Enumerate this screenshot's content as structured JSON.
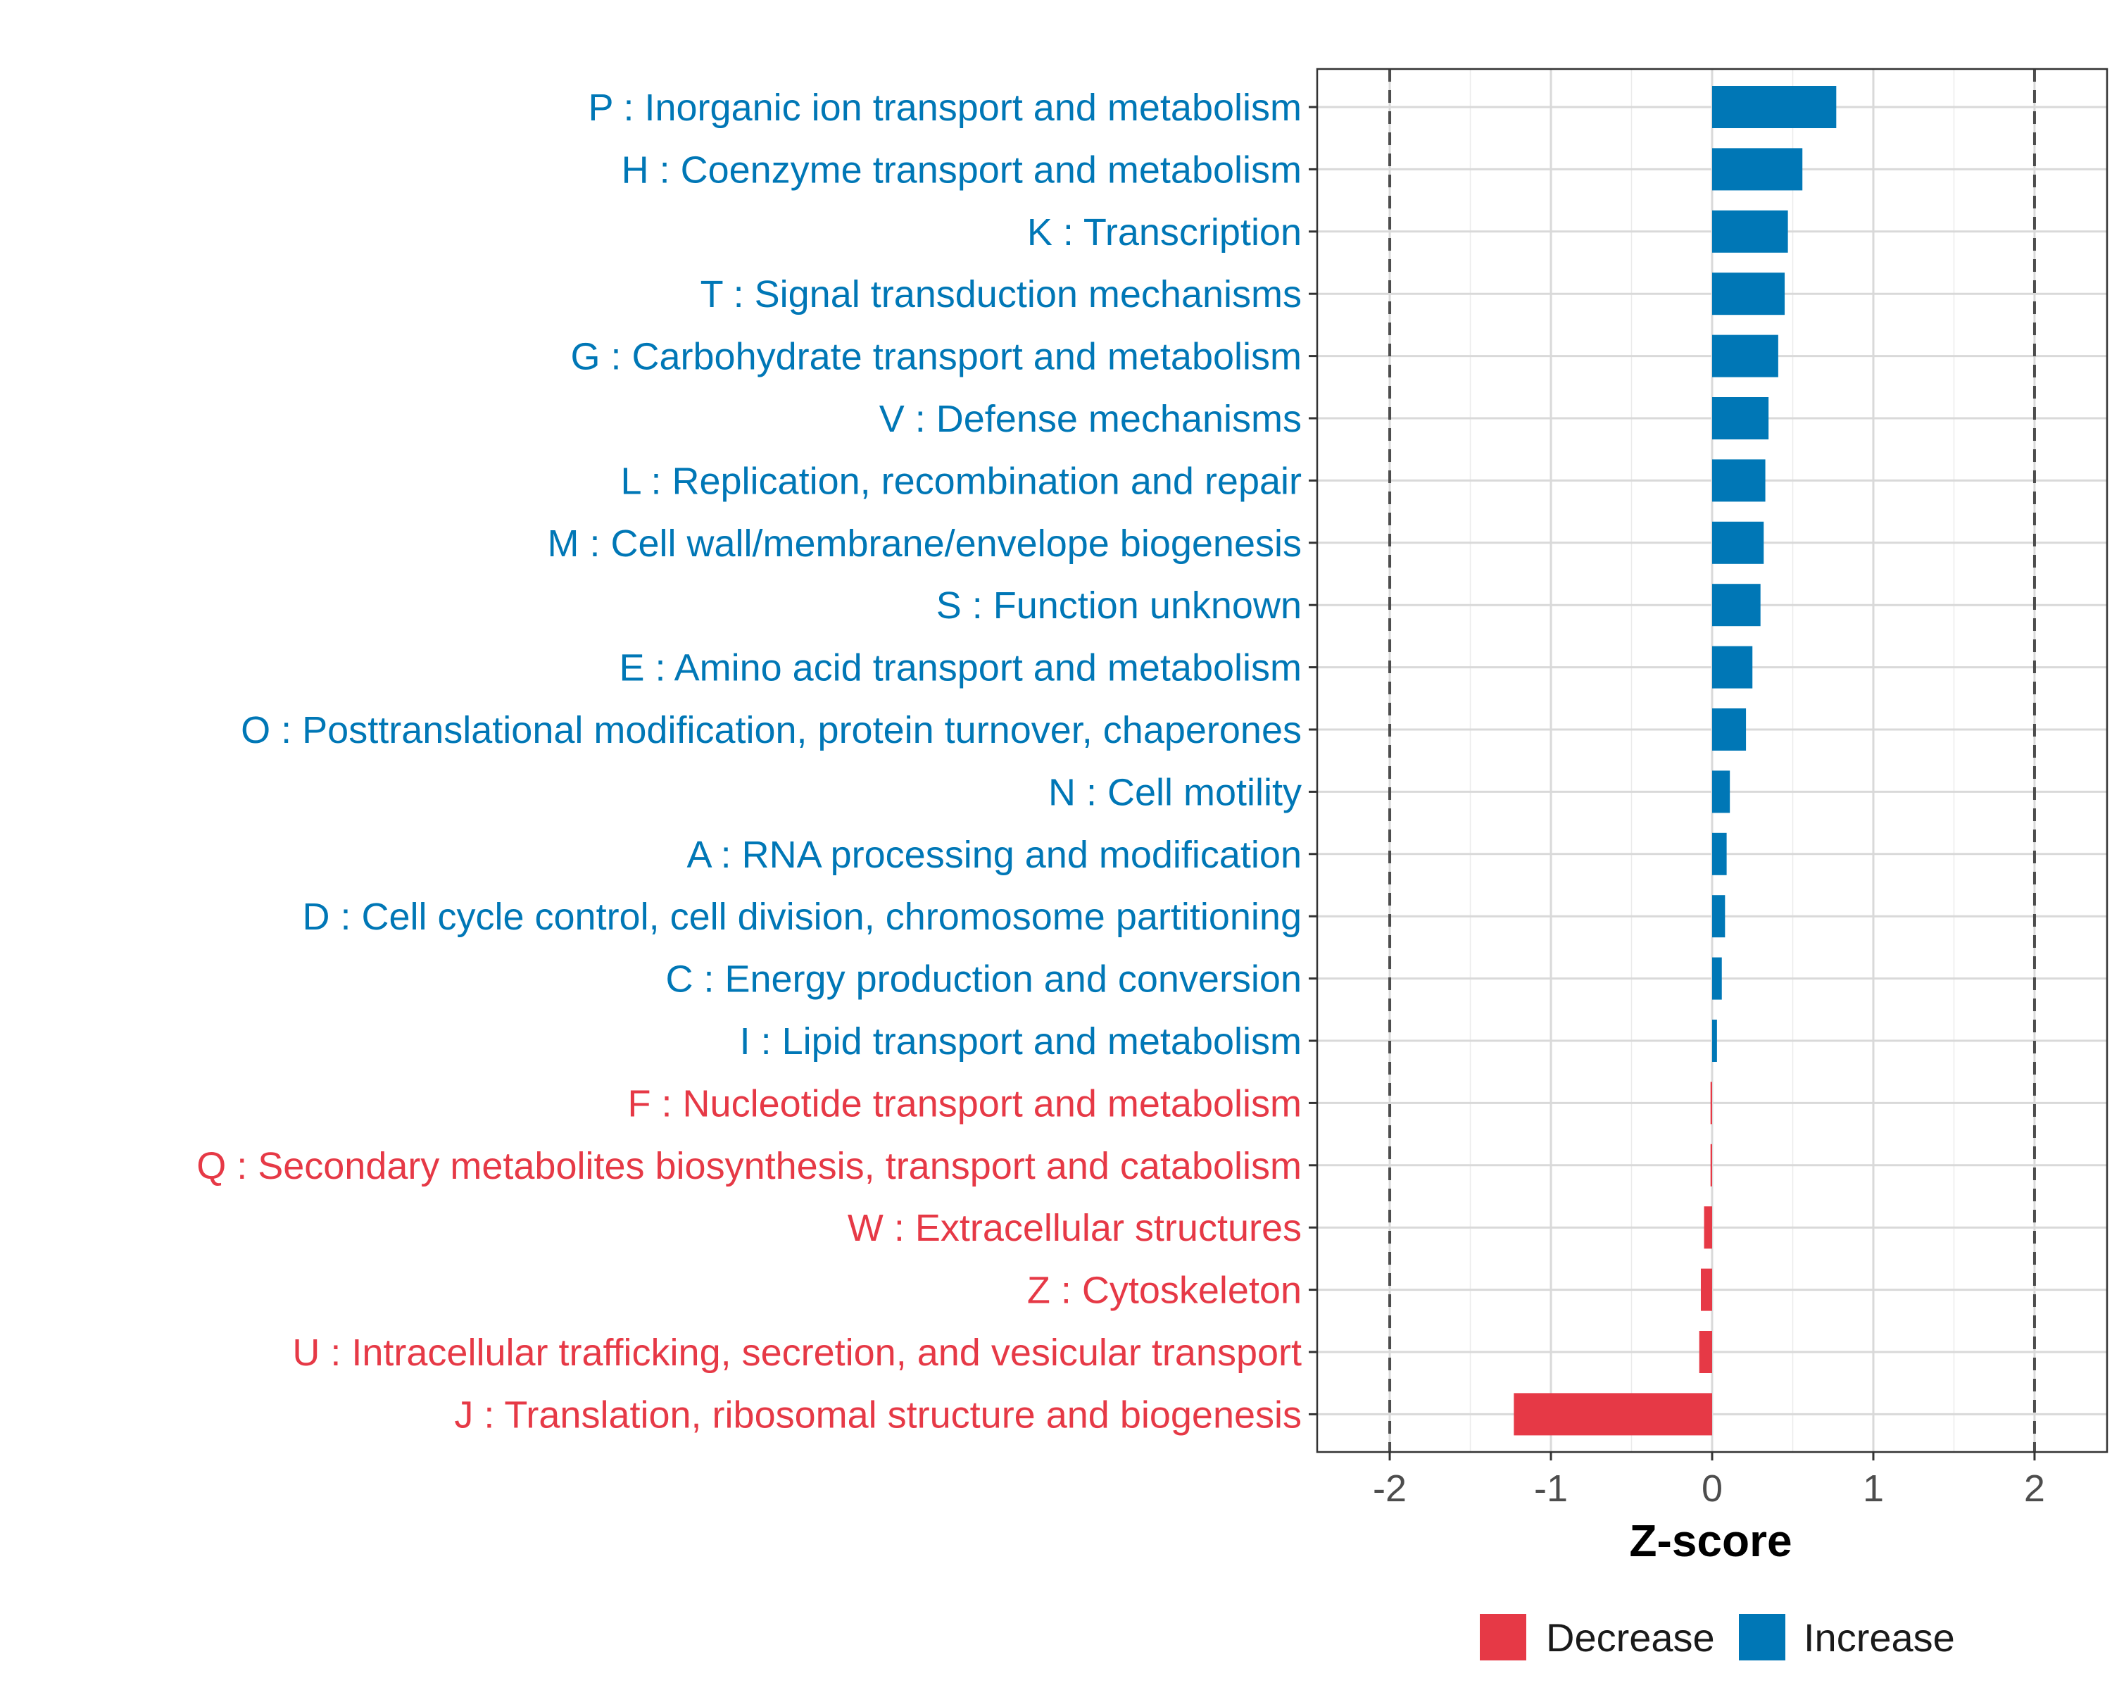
{
  "chart_data": {
    "type": "bar",
    "orientation": "horizontal",
    "title": "",
    "xlabel": "Z-score",
    "ylabel": "",
    "xlim": [
      -2.45,
      2.45
    ],
    "xticks": [
      -2,
      -1,
      0,
      1,
      2
    ],
    "xtick_labels": [
      "-2",
      "-1",
      "0",
      "1",
      "2"
    ],
    "reference_lines": [
      -2,
      2
    ],
    "grid": true,
    "legend_position": "bottom",
    "colors": {
      "Decrease": "#E63946",
      "Increase": "#0077B6"
    },
    "legend": [
      {
        "name": "Decrease",
        "color": "#E63946"
      },
      {
        "name": "Increase",
        "color": "#0077B6"
      }
    ],
    "categories": [
      "P : Inorganic ion transport and metabolism",
      "H : Coenzyme transport and metabolism",
      "K : Transcription",
      "T : Signal transduction mechanisms",
      "G : Carbohydrate transport and metabolism",
      "V : Defense mechanisms",
      "L : Replication, recombination and repair",
      "M : Cell wall/membrane/envelope biogenesis",
      "S : Function unknown",
      "E : Amino acid transport and metabolism",
      "O : Posttranslational modification, protein turnover, chaperones",
      "N : Cell motility",
      "A : RNA processing and modification",
      "D : Cell cycle control, cell division, chromosome partitioning",
      "C : Energy production and conversion",
      "I : Lipid transport and metabolism",
      "F : Nucleotide transport and metabolism",
      "Q : Secondary metabolites biosynthesis, transport and catabolism",
      "W : Extracellular structures",
      "Z : Cytoskeleton",
      "U : Intracellular trafficking, secretion, and vesicular transport",
      "J : Translation, ribosomal structure and biogenesis"
    ],
    "values": [
      0.77,
      0.56,
      0.47,
      0.45,
      0.41,
      0.35,
      0.33,
      0.32,
      0.3,
      0.25,
      0.21,
      0.11,
      0.09,
      0.08,
      0.06,
      0.03,
      -0.01,
      -0.01,
      -0.05,
      -0.07,
      -0.08,
      -1.23
    ],
    "groups": [
      "Increase",
      "Increase",
      "Increase",
      "Increase",
      "Increase",
      "Increase",
      "Increase",
      "Increase",
      "Increase",
      "Increase",
      "Increase",
      "Increase",
      "Increase",
      "Increase",
      "Increase",
      "Increase",
      "Decrease",
      "Decrease",
      "Decrease",
      "Decrease",
      "Decrease",
      "Decrease"
    ]
  }
}
